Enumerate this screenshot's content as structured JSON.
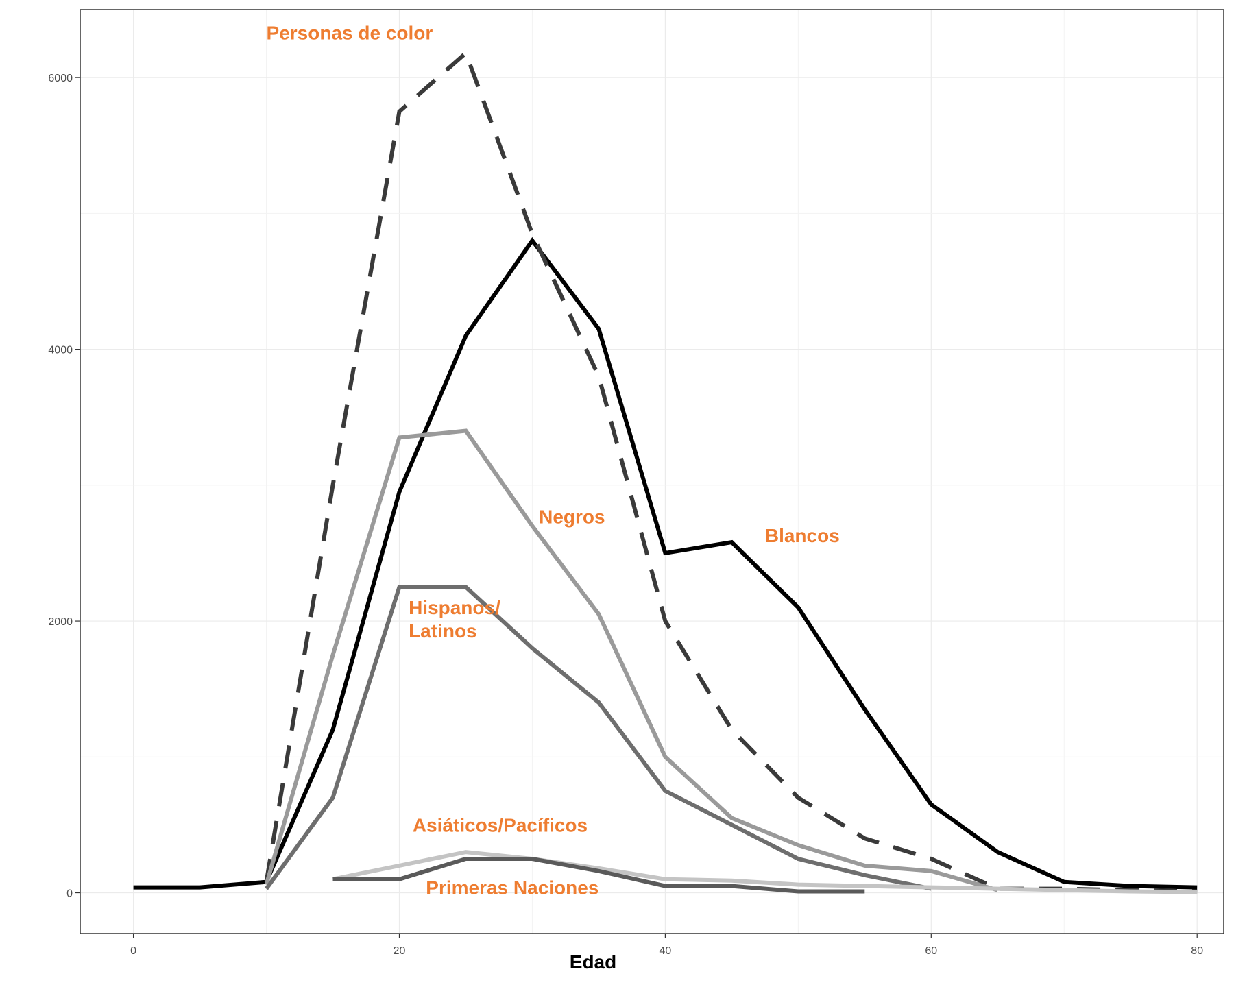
{
  "chart_data": {
    "type": "line",
    "xlabel": "Edad",
    "ylabel": "",
    "xlim": [
      -4,
      82
    ],
    "ylim": [
      -300,
      6500
    ],
    "x_ticks": [
      0,
      20,
      40,
      60,
      80
    ],
    "y_ticks": [
      0,
      2000,
      4000,
      6000
    ],
    "grid": true,
    "colors": {
      "orange_label": "#ee7d31",
      "blancos": "#000000",
      "personas_de_color": "#3a3a3a",
      "negros": "#9a9a9a",
      "hispanos_latinos": "#6e6e6e",
      "asiaticos_pacificos": "#c4c4c4",
      "primeras_naciones": "#5a5a5a"
    },
    "series": [
      {
        "name": "Blancos",
        "style": "solid",
        "color": "#000000",
        "x": [
          0,
          5,
          10,
          15,
          20,
          25,
          30,
          35,
          40,
          45,
          50,
          55,
          60,
          65,
          70,
          75,
          80
        ],
        "y": [
          40,
          40,
          80,
          1200,
          2950,
          4100,
          4800,
          4150,
          2500,
          2580,
          2100,
          1350,
          650,
          300,
          80,
          50,
          40
        ]
      },
      {
        "name": "Personas de color",
        "style": "dashed",
        "color": "#3a3a3a",
        "x": [
          10,
          15,
          20,
          25,
          30,
          35,
          40,
          45,
          50,
          55,
          60,
          65,
          70,
          75,
          80
        ],
        "y": [
          80,
          3000,
          5750,
          6180,
          4850,
          3800,
          2000,
          1200,
          700,
          400,
          250,
          30,
          30,
          20,
          10
        ]
      },
      {
        "name": "Negros",
        "style": "solid",
        "color": "#9a9a9a",
        "x": [
          10,
          15,
          20,
          25,
          30,
          35,
          40,
          45,
          50,
          55,
          60,
          65
        ],
        "y": [
          60,
          1750,
          3350,
          3400,
          2700,
          2050,
          1000,
          550,
          350,
          200,
          160,
          20
        ]
      },
      {
        "name": "Hispanos/ Latinos",
        "style": "solid",
        "color": "#6e6e6e",
        "x": [
          10,
          15,
          20,
          25,
          30,
          35,
          40,
          45,
          50,
          55,
          60
        ],
        "y": [
          30,
          700,
          2250,
          2250,
          1800,
          1400,
          750,
          500,
          250,
          130,
          30
        ]
      },
      {
        "name": "Asiáticos/Pacíficos",
        "style": "solid",
        "color": "#c4c4c4",
        "x": [
          15,
          20,
          25,
          30,
          35,
          40,
          45,
          50,
          55,
          60,
          65,
          70,
          75,
          80
        ],
        "y": [
          100,
          200,
          300,
          250,
          180,
          100,
          90,
          60,
          50,
          40,
          30,
          20,
          10,
          5
        ]
      },
      {
        "name": "Primeras Naciones",
        "style": "solid",
        "color": "#5a5a5a",
        "x": [
          15,
          20,
          25,
          30,
          35,
          40,
          45,
          50,
          55
        ],
        "y": [
          100,
          100,
          250,
          250,
          160,
          50,
          50,
          10,
          10
        ]
      }
    ],
    "annotations": [
      {
        "text": "Personas de color",
        "x": 10,
        "y": 6280,
        "lines": [
          "Personas de color"
        ]
      },
      {
        "text": "Blancos",
        "x": 47.5,
        "y": 2580,
        "lines": [
          "Blancos"
        ]
      },
      {
        "text": "Negros",
        "x": 30.5,
        "y": 2720,
        "lines": [
          "Negros"
        ]
      },
      {
        "text": "Hispanos/ Latinos",
        "x": 20.7,
        "y": 2050,
        "lines": [
          "Hispanos/",
          "Latinos"
        ]
      },
      {
        "text": "Asiáticos/Pacíficos",
        "x": 21,
        "y": 450,
        "lines": [
          "Asiáticos/Pacíficos"
        ]
      },
      {
        "text": "Primeras Naciones",
        "x": 22,
        "y": -10,
        "lines": [
          "Primeras Naciones"
        ]
      }
    ]
  }
}
